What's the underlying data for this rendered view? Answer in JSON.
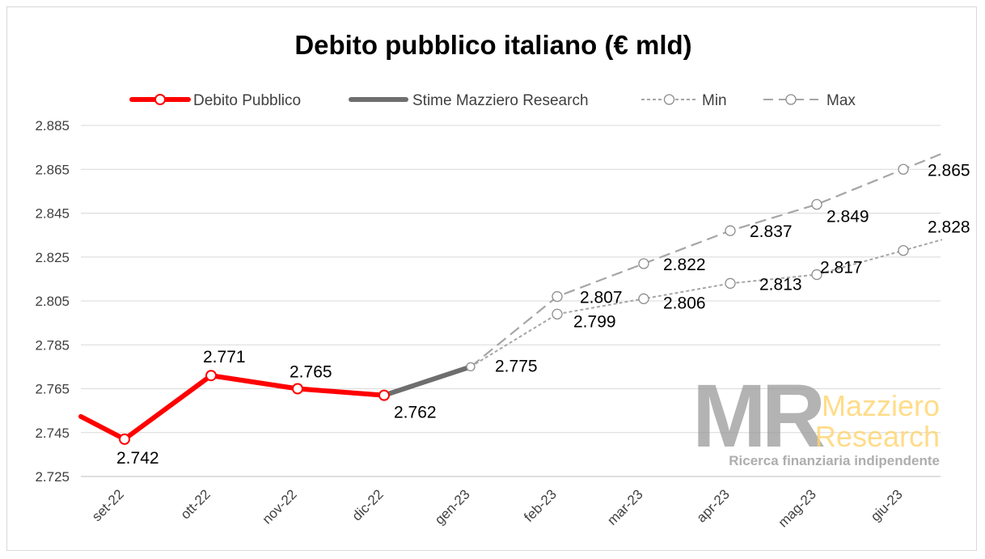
{
  "chart_data": {
    "type": "line",
    "title": "Debito pubblico italiano (€ mld)",
    "categories": [
      "set-22",
      "ott-22",
      "nov-22",
      "dic-22",
      "gen-23",
      "feb-23",
      "mar-23",
      "apr-23",
      "mag-23",
      "giu-23"
    ],
    "ylim": [
      2725,
      2885
    ],
    "yticks": [
      2725,
      2745,
      2765,
      2785,
      2805,
      2825,
      2845,
      2865,
      2885
    ],
    "ytick_labels": [
      "2.725",
      "2.745",
      "2.765",
      "2.785",
      "2.805",
      "2.825",
      "2.845",
      "2.865",
      "2.885"
    ],
    "grid": true,
    "legend_position": "top",
    "series": [
      {
        "name": "Debito Pubblico",
        "color": "#ff0000",
        "style": "solid-markers",
        "x": [
          "set-22",
          "ott-22",
          "nov-22",
          "dic-22"
        ],
        "values": [
          2742,
          2771,
          2765,
          2762
        ],
        "labels": [
          "2.742",
          "2.771",
          "2.765",
          "2.762"
        ]
      },
      {
        "name": "Stime Mazziero Research",
        "color": "#6e6e6e",
        "style": "solid",
        "x": [
          "dic-22",
          "gen-23"
        ],
        "values": [
          2762,
          2775
        ],
        "labels": [
          "",
          "2.775"
        ]
      },
      {
        "name": "Min",
        "color": "#a6a6a6",
        "style": "dotted-markers",
        "x": [
          "gen-23",
          "feb-23",
          "mar-23",
          "apr-23",
          "mag-23",
          "giu-23"
        ],
        "values": [
          2775,
          2799,
          2806,
          2813,
          2817,
          2828
        ],
        "labels": [
          "",
          "2.799",
          "2.806",
          "2.813",
          "2.817",
          "2.828"
        ]
      },
      {
        "name": "Max",
        "color": "#a6a6a6",
        "style": "dashed-markers",
        "x": [
          "gen-23",
          "feb-23",
          "mar-23",
          "apr-23",
          "mag-23",
          "giu-23"
        ],
        "values": [
          2775,
          2807,
          2822,
          2837,
          2849,
          2865
        ],
        "labels": [
          "",
          "2.807",
          "2.822",
          "2.837",
          "2.849",
          "2.865"
        ]
      }
    ]
  },
  "watermark": {
    "logo_letters": "MR",
    "brand_line1": "Mazziero",
    "brand_line2": "Research",
    "tagline": "Ricerca finanziaria indipendente",
    "letters_color": "#9a9a9a",
    "brand_color": "#ffd36b",
    "tagline_color": "#a0a0a0"
  }
}
